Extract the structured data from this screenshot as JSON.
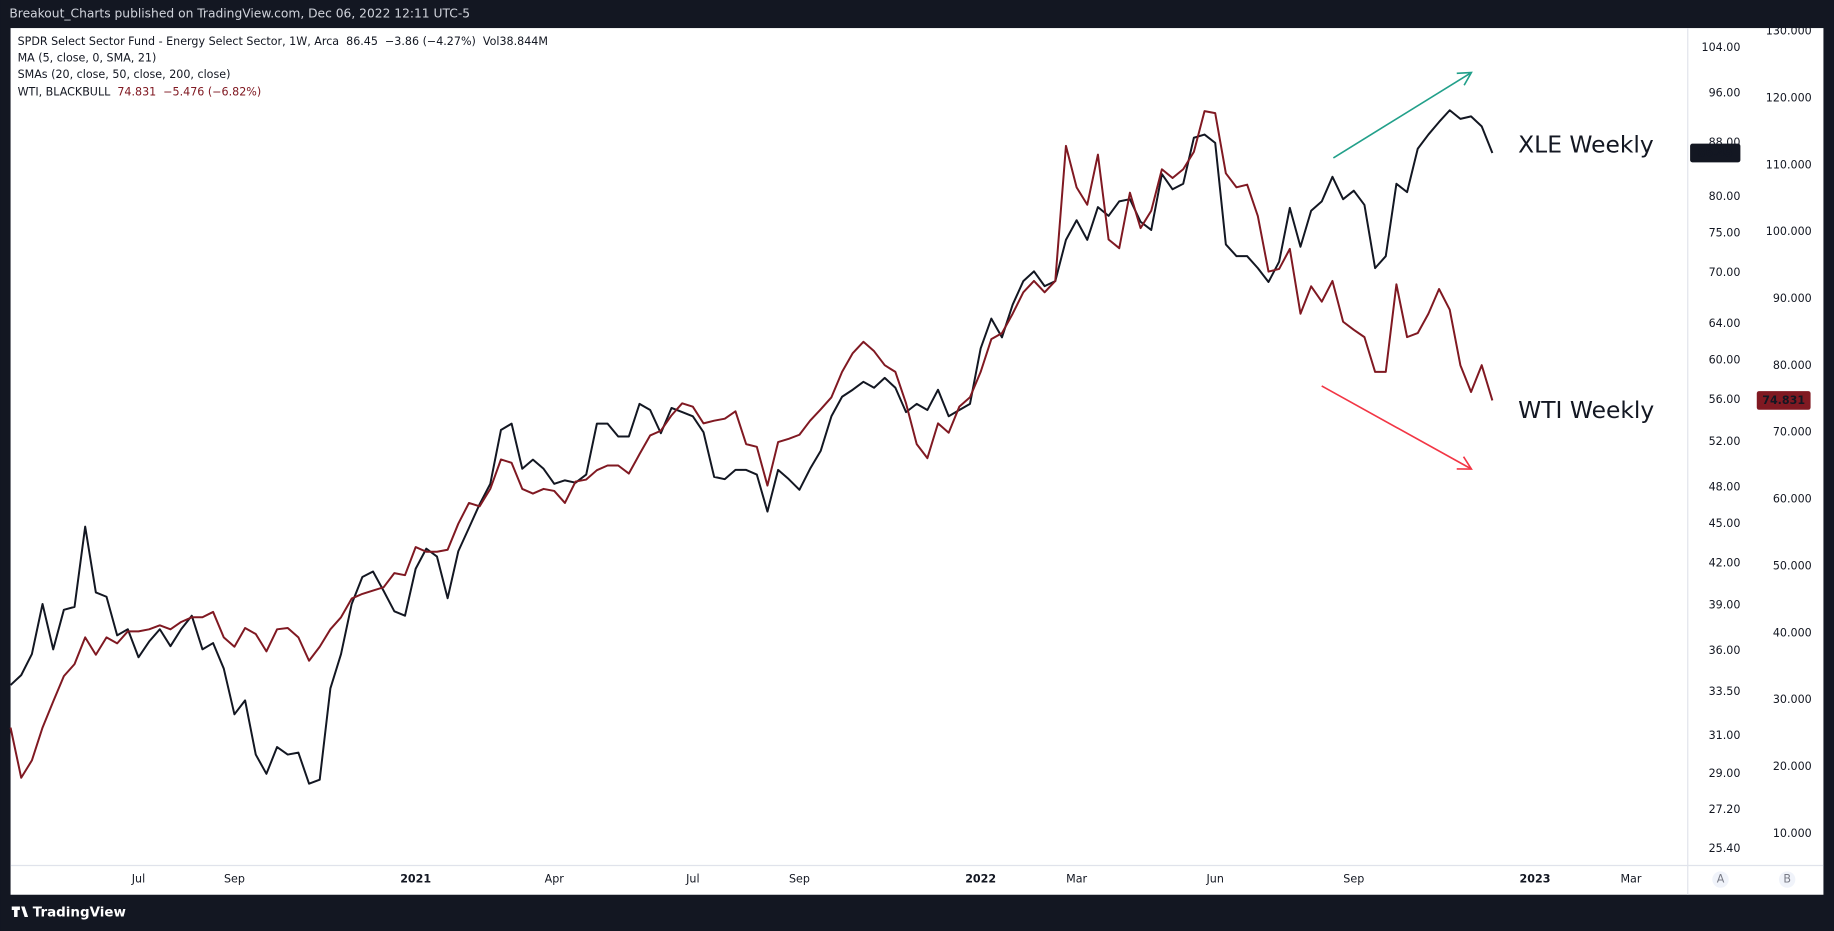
{
  "header": "Breakout_Charts published on TradingView.com, Dec 06, 2022 12:11 UTC-5",
  "footer": "TradingView",
  "scale_buttons": [
    "A",
    "B"
  ],
  "chart_data": {
    "type": "line",
    "info": [
      {
        "text": "SPDR Select Sector Fund - Energy Select Sector, 1W, Arca",
        "change": "−3.86 (−4.27%)",
        "volume": "Vol38.844M"
      },
      {
        "text": "MA (5, close, 0, SMA, 21)"
      },
      {
        "text": "SMAs (20, close, 50, close, 200, close)"
      },
      {
        "text": "WTI, BLACKBULL",
        "change": "−5.476 (−6.82%)"
      }
    ],
    "categories": [
      null,
      null,
      null,
      null,
      null,
      null,
      null,
      null,
      null,
      null,
      null,
      null,
      "Jul",
      null,
      null,
      null,
      null,
      null,
      null,
      null,
      null,
      "Sep",
      null,
      null,
      null,
      null,
      null,
      null,
      null,
      null,
      null,
      null,
      null,
      null,
      null,
      null,
      null,
      null,
      "2021",
      null,
      null,
      null,
      null,
      null,
      null,
      null,
      null,
      null,
      null,
      null,
      null,
      "Apr",
      null,
      null,
      null,
      null,
      null,
      null,
      null,
      null,
      null,
      null,
      null,
      null,
      "Jul",
      null,
      null,
      null,
      null,
      null,
      null,
      null,
      null,
      null,
      "Sep",
      null,
      null,
      null,
      null,
      null,
      null,
      null,
      null,
      null,
      null,
      null,
      null,
      null,
      null,
      null,
      null,
      "2022",
      null,
      null,
      null,
      null,
      null,
      null,
      null,
      null,
      "Mar",
      null,
      null,
      null,
      null,
      null,
      null,
      null,
      null,
      null,
      null,
      null,
      null,
      "Jun",
      null,
      null,
      null,
      null,
      null,
      null,
      null,
      null,
      null,
      null,
      null,
      null,
      "Sep",
      null,
      null,
      null,
      null,
      null,
      null,
      null,
      null,
      null,
      null,
      null,
      null,
      null,
      null,
      null,
      null,
      "2023",
      null,
      null,
      null,
      null,
      null,
      null,
      null,
      null,
      "Mar",
      null,
      null,
      null,
      null,
      null
    ],
    "series": [
      {
        "name": "XLE Weekly",
        "color": "#131722",
        "values": [
          33.9,
          34.5,
          35.8,
          39.1,
          36.1,
          38.7,
          38.9,
          44.8,
          39.9,
          39.6,
          37.0,
          37.4,
          35.6,
          36.6,
          37.4,
          36.3,
          37.4,
          38.3,
          36.1,
          36.5,
          34.9,
          32.2,
          33.0,
          30.0,
          29.0,
          30.4,
          30.0,
          30.1,
          28.5,
          28.7,
          33.7,
          35.8,
          39.1,
          41.0,
          41.4,
          40.0,
          38.6,
          38.3,
          41.6,
          43.1,
          42.5,
          39.5,
          42.9,
          44.7,
          46.6,
          48.3,
          53.1,
          53.7,
          49.6,
          50.4,
          49.6,
          48.3,
          48.6,
          48.4,
          49.1,
          53.7,
          53.7,
          52.5,
          52.5,
          55.6,
          55.0,
          52.8,
          55.2,
          54.8,
          54.4,
          52.9,
          48.9,
          48.7,
          49.5,
          49.5,
          49.1,
          46.0,
          49.5,
          48.7,
          47.8,
          49.6,
          51.2,
          54.4,
          56.3,
          57.0,
          57.8,
          57.2,
          58.2,
          57.2,
          54.8,
          55.6,
          55.0,
          57.0,
          54.4,
          55.0,
          55.6,
          61.3,
          64.6,
          62.5,
          66.2,
          69.0,
          70.2,
          68.4,
          69.0,
          74.2,
          76.8,
          74.2,
          78.6,
          77.4,
          79.4,
          79.7,
          76.6,
          75.5,
          83.3,
          81.1,
          81.9,
          88.8,
          89.3,
          88.0,
          73.6,
          72.1,
          72.1,
          70.6,
          68.9,
          71.4,
          78.5,
          73.3,
          78.1,
          79.4,
          82.9,
          79.7,
          80.9,
          78.9,
          70.6,
          72.1,
          81.9,
          80.7,
          87.1,
          89.3,
          91.3,
          93.2,
          91.8,
          92.2,
          90.6,
          86.45,
          null,
          null,
          null,
          null,
          null,
          null,
          null,
          null,
          null,
          null,
          null,
          null,
          null,
          null,
          null,
          null,
          null,
          null
        ]
      },
      {
        "name": "WTI Weekly",
        "color": "#801922",
        "axis": "y2",
        "values": [
          25.9,
          18.4,
          21.0,
          25.9,
          29.8,
          33.6,
          35.4,
          39.4,
          36.8,
          39.4,
          38.5,
          40.3,
          40.3,
          40.6,
          41.2,
          40.6,
          41.7,
          42.4,
          42.4,
          43.2,
          39.4,
          38.0,
          40.8,
          39.9,
          37.3,
          40.6,
          40.8,
          39.4,
          35.9,
          38.0,
          40.6,
          42.4,
          45.2,
          45.9,
          46.4,
          46.9,
          49.0,
          48.7,
          52.9,
          52.2,
          52.2,
          52.5,
          56.4,
          59.5,
          59.0,
          61.6,
          66.0,
          65.5,
          61.6,
          60.9,
          61.6,
          61.3,
          59.5,
          62.7,
          63.0,
          64.4,
          65.1,
          65.1,
          63.9,
          66.8,
          69.6,
          70.3,
          72.6,
          74.4,
          73.9,
          71.4,
          71.8,
          72.1,
          73.2,
          68.3,
          67.9,
          62.1,
          68.6,
          69.1,
          69.7,
          71.8,
          73.5,
          75.3,
          79.1,
          81.9,
          83.6,
          82.2,
          80.1,
          79.1,
          74.4,
          68.3,
          66.2,
          71.4,
          70.0,
          73.9,
          75.3,
          79.1,
          84.0,
          84.9,
          87.8,
          91.0,
          92.7,
          91.0,
          92.7,
          112.9,
          106.7,
          104.1,
          111.6,
          98.9,
          97.6,
          105.9,
          100.6,
          103.2,
          109.4,
          108.1,
          109.4,
          112.0,
          118.1,
          117.8,
          108.8,
          106.7,
          107.1,
          102.4,
          94.1,
          94.5,
          97.5,
          87.8,
          91.9,
          89.6,
          92.7,
          86.6,
          85.4,
          84.3,
          79.1,
          79.1,
          92.2,
          84.3,
          84.9,
          87.8,
          91.5,
          88.4,
          80.1,
          76.1,
          80.1,
          74.831,
          null,
          null,
          null,
          null,
          null,
          null,
          null,
          null,
          null,
          null,
          null,
          null,
          null,
          null,
          null,
          null,
          null,
          null
        ]
      }
    ],
    "log_scale": true,
    "grid": false,
    "ylim": [
      24.68,
      107.7
    ],
    "yticks": [
      {
        "value": 25.4,
        "label": "25.40"
      },
      {
        "value": 27.2,
        "label": "27.20"
      },
      {
        "value": 29,
        "label": "29.00"
      },
      {
        "value": 31,
        "label": "31.00"
      },
      {
        "value": 33.5,
        "label": "33.50"
      },
      {
        "value": 36,
        "label": "36.00"
      },
      {
        "value": 39,
        "label": "39.00"
      },
      {
        "value": 42,
        "label": "42.00"
      },
      {
        "value": 45,
        "label": "45.00"
      },
      {
        "value": 48,
        "label": "48.00"
      },
      {
        "value": 52,
        "label": "52.00"
      },
      {
        "value": 56,
        "label": "56.00"
      },
      {
        "value": 60,
        "label": "60.00"
      },
      {
        "value": 64,
        "label": "64.00"
      },
      {
        "value": 70,
        "label": "70.00"
      },
      {
        "value": 75,
        "label": "75.00"
      },
      {
        "value": 80,
        "label": "80.00"
      },
      {
        "value": 88,
        "label": "88.00"
      },
      {
        "value": 96,
        "label": "96.00"
      },
      {
        "value": 104,
        "label": "104.00"
      }
    ],
    "y2lim": [
      5.28,
      130.52
    ],
    "y2ticks": [
      {
        "value": 10,
        "label": "10.000"
      },
      {
        "value": 20,
        "label": "20.000"
      },
      {
        "value": 30,
        "label": "30.000"
      },
      {
        "value": 40,
        "label": "40.000"
      },
      {
        "value": 50,
        "label": "50.000"
      },
      {
        "value": 60,
        "label": "60.000"
      },
      {
        "value": 70,
        "label": "70.000"
      },
      {
        "value": 80,
        "label": "80.000"
      },
      {
        "value": 90,
        "label": "90.000"
      },
      {
        "value": 100,
        "label": "100.000"
      },
      {
        "value": 110,
        "label": "110.000"
      },
      {
        "value": 120,
        "label": "120.000"
      },
      {
        "value": 130,
        "label": "130.000"
      }
    ]
  }
}
